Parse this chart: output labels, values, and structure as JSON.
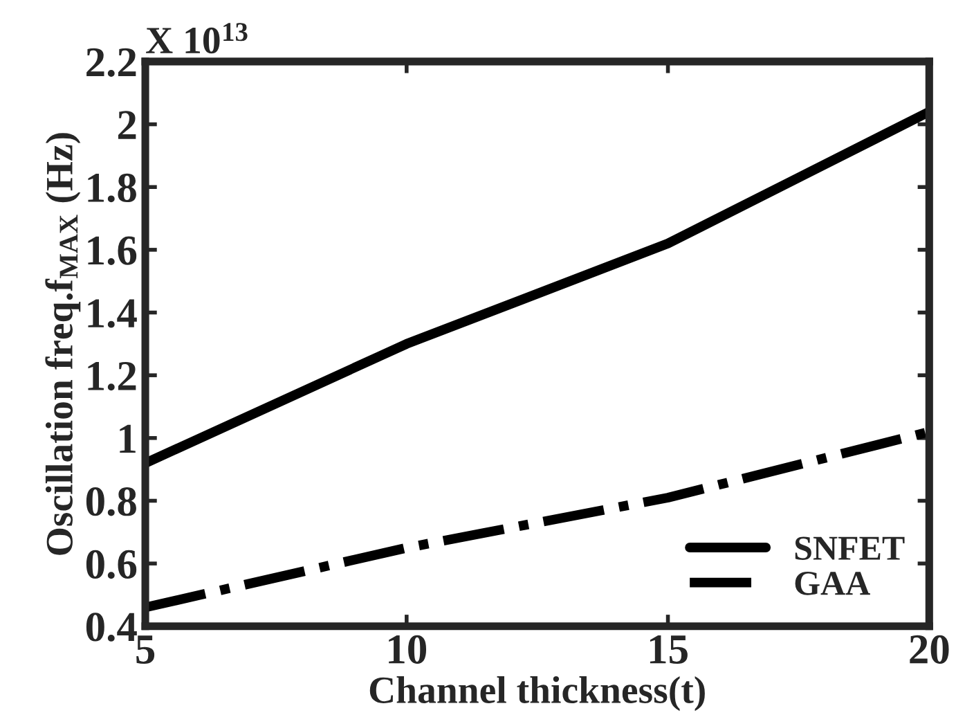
{
  "chart_data": {
    "type": "line",
    "xlabel": "Channel thickness(t)",
    "ylabel": "Oscillation freq.f$_{MAX}$ (Hz)",
    "annotations": [
      "X 10$^{13}$"
    ],
    "x": [
      5,
      10,
      15,
      20
    ],
    "series": [
      {
        "name": "SNFET",
        "color": "#000000",
        "line_style": "solid",
        "values": [
          0.92,
          1.3,
          1.62,
          2.04
        ]
      },
      {
        "name": "GAA",
        "color": "#000000",
        "line_style": "dashdot",
        "values": [
          0.46,
          0.65,
          0.81,
          1.02
        ]
      }
    ],
    "xlim": [
      5,
      20
    ],
    "xticks": [
      5,
      10,
      15,
      20
    ],
    "ylim": [
      0.4,
      2.2
    ],
    "yticks": [
      0.4,
      0.6,
      0.8,
      1,
      1.2,
      1.4,
      1.6,
      1.8,
      2,
      2.2
    ],
    "grid": false,
    "legend": "bottom right",
    "marker": "none"
  }
}
